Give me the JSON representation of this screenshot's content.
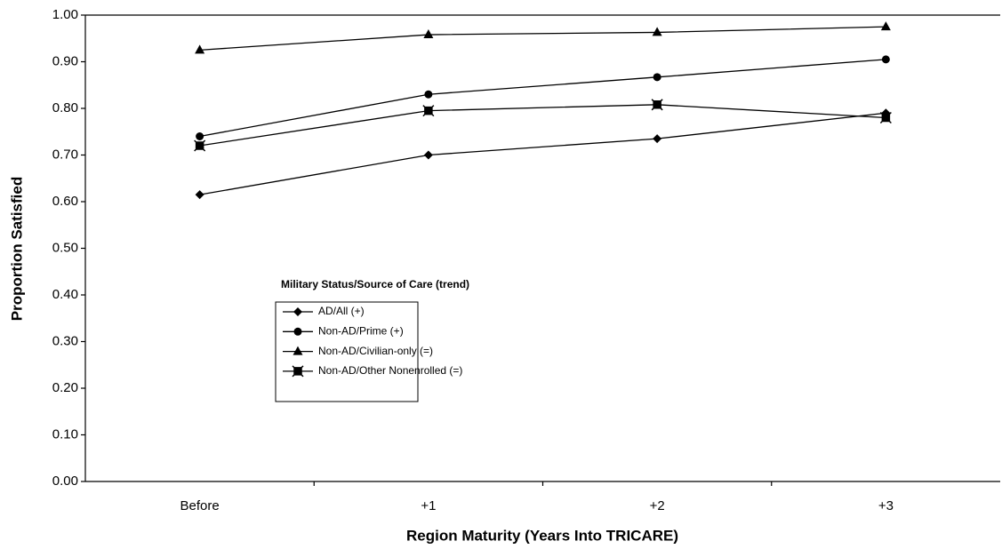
{
  "chart_data": {
    "type": "line",
    "xlabel": "Region Maturity (Years Into TRICARE)",
    "ylabel": "Proportion Satisfied",
    "legend_title": "Military Status/Source of Care (trend)",
    "categories": [
      "Before",
      "+1",
      "+2",
      "+3"
    ],
    "series": [
      {
        "name": "AD/All (+)",
        "color": "#000000",
        "marker": "diamond",
        "values": [
          0.615,
          0.7,
          0.735,
          0.79
        ]
      },
      {
        "name": "Non-AD/Prime (+)",
        "color": "#000000",
        "marker": "circle",
        "values": [
          0.74,
          0.83,
          0.867,
          0.905
        ]
      },
      {
        "name": "Non-AD/Civilian-only (=)",
        "color": "#000000",
        "marker": "triangle",
        "values": [
          0.925,
          0.958,
          0.963,
          0.975
        ]
      },
      {
        "name": "Non-AD/Other Nonenrolled (=)",
        "color": "#000000",
        "marker": "star",
        "values": [
          0.72,
          0.795,
          0.808,
          0.78
        ]
      }
    ],
    "ylim": [
      0,
      1
    ],
    "yticks": [
      {
        "value": 0,
        "label": "0.00"
      },
      {
        "value": 0.1,
        "label": "0.10"
      },
      {
        "value": 0.2,
        "label": "0.20"
      },
      {
        "value": 0.3,
        "label": "0.30"
      },
      {
        "value": 0.4,
        "label": "0.40"
      },
      {
        "value": 0.5,
        "label": "0.50"
      },
      {
        "value": 0.6,
        "label": "0.60"
      },
      {
        "value": 0.7,
        "label": "0.70"
      },
      {
        "value": 0.8,
        "label": "0.80"
      },
      {
        "value": 0.9,
        "label": "0.90"
      },
      {
        "value": 1,
        "label": "1.00"
      }
    ],
    "grid": false
  }
}
